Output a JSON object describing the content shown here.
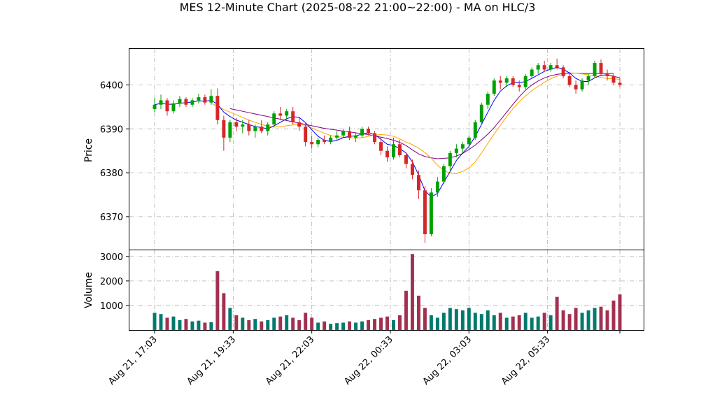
{
  "chart_data": {
    "type": "candlestick",
    "title": "MES 12-Minute Chart (2025-08-22 21:00~22:00) - MA on HLC/3",
    "panels": {
      "price": {
        "ylabel": "Price",
        "yticks": [
          6370,
          6380,
          6390,
          6400
        ],
        "ylim": [
          6362.5,
          6408.2
        ]
      },
      "volume": {
        "ylabel": "Volume",
        "yticks": [
          1000,
          2000,
          3000
        ],
        "ylim": [
          0,
          3250
        ]
      }
    },
    "xticks": [
      "Aug 21, 17:03",
      "Aug 21, 19:33",
      "Aug 21, 22:03",
      "Aug 22, 00:33",
      "Aug 22, 03:03",
      "Aug 22, 05:33"
    ],
    "xtick_bar_index": [
      0,
      12.5,
      25,
      37.5,
      50,
      62.5
    ],
    "bar_count": 75,
    "grid": true,
    "colors": {
      "up": "#00a000",
      "down": "#d62728",
      "ma_fast": "#0000ff",
      "ma_mid": "#ffa500",
      "ma_slow": "#800080",
      "vol_up": "#007a6e",
      "vol_down": "#a23050",
      "grid": "#b0b0b0"
    },
    "ohlc": [
      [
        6394.5,
        6397.0,
        6393.8,
        6395.5
      ],
      [
        6395.5,
        6397.8,
        6394.5,
        6396.5
      ],
      [
        6396.5,
        6397.0,
        6393.0,
        6394.0
      ],
      [
        6394.0,
        6396.5,
        6393.5,
        6395.8
      ],
      [
        6395.8,
        6397.5,
        6395.0,
        6396.8
      ],
      [
        6396.8,
        6397.2,
        6395.0,
        6395.5
      ],
      [
        6395.5,
        6397.0,
        6395.0,
        6396.5
      ],
      [
        6396.5,
        6398.0,
        6395.8,
        6397.2
      ],
      [
        6397.2,
        6397.8,
        6395.5,
        6396.0
      ],
      [
        6396.0,
        6399.0,
        6395.5,
        6397.5
      ],
      [
        6397.5,
        6399.2,
        6391.0,
        6392.0
      ],
      [
        6392.0,
        6393.0,
        6385.0,
        6388.0
      ],
      [
        6388.0,
        6392.0,
        6387.0,
        6391.5
      ],
      [
        6391.5,
        6392.5,
        6389.5,
        6390.5
      ],
      [
        6390.5,
        6392.0,
        6389.0,
        6391.0
      ],
      [
        6391.0,
        6392.0,
        6388.5,
        6389.5
      ],
      [
        6389.5,
        6391.0,
        6388.0,
        6390.5
      ],
      [
        6390.5,
        6392.0,
        6389.0,
        6389.5
      ],
      [
        6389.5,
        6391.5,
        6388.5,
        6391.0
      ],
      [
        6391.0,
        6394.0,
        6390.5,
        6393.5
      ],
      [
        6393.5,
        6395.0,
        6392.0,
        6393.0
      ],
      [
        6393.0,
        6394.5,
        6392.0,
        6394.0
      ],
      [
        6394.0,
        6395.0,
        6391.0,
        6391.5
      ],
      [
        6391.5,
        6392.5,
        6389.5,
        6390.5
      ],
      [
        6390.5,
        6391.5,
        6386.0,
        6387.0
      ],
      [
        6387.0,
        6388.5,
        6385.5,
        6386.5
      ],
      [
        6386.5,
        6388.0,
        6385.8,
        6387.5
      ],
      [
        6387.5,
        6388.5,
        6386.5,
        6387.0
      ],
      [
        6387.0,
        6388.5,
        6386.5,
        6388.0
      ],
      [
        6388.0,
        6389.5,
        6387.5,
        6388.5
      ],
      [
        6388.5,
        6390.0,
        6388.0,
        6389.5
      ],
      [
        6389.5,
        6390.5,
        6387.5,
        6388.0
      ],
      [
        6388.0,
        6389.0,
        6387.0,
        6388.5
      ],
      [
        6388.5,
        6390.5,
        6388.0,
        6390.0
      ],
      [
        6390.0,
        6390.5,
        6388.5,
        6389.0
      ],
      [
        6389.0,
        6389.5,
        6386.5,
        6387.0
      ],
      [
        6387.0,
        6388.0,
        6384.0,
        6385.0
      ],
      [
        6385.0,
        6386.0,
        6382.5,
        6383.5
      ],
      [
        6383.5,
        6388.0,
        6383.0,
        6386.5
      ],
      [
        6386.5,
        6387.5,
        6383.5,
        6384.0
      ],
      [
        6384.0,
        6384.5,
        6381.0,
        6382.0
      ],
      [
        6382.0,
        6383.0,
        6378.5,
        6379.5
      ],
      [
        6379.5,
        6380.5,
        6374.0,
        6376.0
      ],
      [
        6376.0,
        6377.0,
        6364.0,
        6366.0
      ],
      [
        6366.0,
        6376.5,
        6365.5,
        6375.5
      ],
      [
        6375.5,
        6379.0,
        6374.5,
        6378.0
      ],
      [
        6378.0,
        6382.0,
        6377.5,
        6381.5
      ],
      [
        6381.5,
        6385.0,
        6380.5,
        6384.5
      ],
      [
        6384.5,
        6386.5,
        6383.5,
        6385.5
      ],
      [
        6385.5,
        6387.0,
        6384.5,
        6386.5
      ],
      [
        6386.5,
        6388.5,
        6385.5,
        6388.0
      ],
      [
        6388.0,
        6392.0,
        6387.5,
        6391.5
      ],
      [
        6391.5,
        6396.0,
        6391.0,
        6395.5
      ],
      [
        6395.5,
        6398.5,
        6394.5,
        6398.0
      ],
      [
        6398.0,
        6401.5,
        6397.5,
        6401.0
      ],
      [
        6401.0,
        6402.0,
        6399.0,
        6400.5
      ],
      [
        6400.5,
        6402.0,
        6399.5,
        6401.5
      ],
      [
        6401.5,
        6402.0,
        6399.5,
        6400.0
      ],
      [
        6400.0,
        6401.0,
        6398.5,
        6399.5
      ],
      [
        6399.5,
        6402.5,
        6399.0,
        6402.0
      ],
      [
        6402.0,
        6404.0,
        6401.5,
        6403.5
      ],
      [
        6403.5,
        6405.0,
        6402.5,
        6404.5
      ],
      [
        6404.5,
        6405.5,
        6403.0,
        6403.5
      ],
      [
        6403.5,
        6405.0,
        6403.0,
        6404.5
      ],
      [
        6404.5,
        6406.0,
        6403.5,
        6404.0
      ],
      [
        6404.0,
        6404.5,
        6401.5,
        6402.0
      ],
      [
        6402.0,
        6403.0,
        6399.5,
        6400.0
      ],
      [
        6400.0,
        6401.0,
        6398.0,
        6399.0
      ],
      [
        6399.0,
        6401.5,
        6398.5,
        6401.0
      ],
      [
        6401.0,
        6402.5,
        6400.0,
        6402.0
      ],
      [
        6402.0,
        6405.5,
        6401.5,
        6405.0
      ],
      [
        6405.0,
        6405.8,
        6402.0,
        6402.5
      ],
      [
        6402.5,
        6403.5,
        6401.0,
        6402.0
      ],
      [
        6402.0,
        6402.5,
        6400.0,
        6400.5
      ],
      [
        6400.5,
        6401.5,
        6399.5,
        6400.0
      ]
    ],
    "volume": [
      700,
      650,
      500,
      550,
      400,
      450,
      350,
      380,
      300,
      320,
      2400,
      1500,
      900,
      600,
      500,
      400,
      450,
      350,
      400,
      500,
      550,
      600,
      500,
      400,
      700,
      500,
      300,
      350,
      250,
      280,
      300,
      350,
      300,
      350,
      400,
      450,
      500,
      550,
      400,
      600,
      1600,
      3100,
      1400,
      900,
      600,
      500,
      700,
      900,
      850,
      800,
      900,
      700,
      650,
      800,
      600,
      700,
      500,
      550,
      600,
      700,
      500,
      550,
      700,
      600,
      1350,
      800,
      650,
      900,
      700,
      800,
      900,
      950,
      800,
      1200,
      1450
    ],
    "ma_fast": {
      "start": 0,
      "values": [
        6395.5,
        6395.8,
        6395.6,
        6395.6,
        6395.8,
        6396.0,
        6396.1,
        6396.4,
        6396.3,
        6396.5,
        6395.6,
        6393.8,
        6392.8,
        6392.0,
        6391.5,
        6391.0,
        6390.5,
        6390.3,
        6390.0,
        6390.7,
        6391.5,
        6392.3,
        6392.8,
        6392.6,
        6391.4,
        6389.8,
        6388.3,
        6387.4,
        6387.1,
        6387.4,
        6388.0,
        6388.3,
        6388.4,
        6388.8,
        6389.1,
        6388.7,
        6387.6,
        6386.5,
        6386.2,
        6385.5,
        6384.5,
        6382.5,
        6379.5,
        6375.9,
        6374.5,
        6375.3,
        6377.8,
        6380.3,
        6382.8,
        6384.5,
        6386.0,
        6388.3,
        6391.0,
        6393.8,
        6396.5,
        6398.6,
        6399.8,
        6400.5,
        6400.5,
        6400.8,
        6401.5,
        6402.3,
        6403.1,
        6403.6,
        6404.0,
        6403.6,
        6402.7,
        6401.5,
        6400.8,
        6400.8,
        6401.6,
        6402.2,
        6402.3,
        6402.0,
        6401.6
      ]
    },
    "ma_mid": {
      "start": 9,
      "values": [
        6395.8,
        6395.2,
        6394.4,
        6393.8,
        6393.2,
        6392.6,
        6392.0,
        6391.5,
        6391.0,
        6390.6,
        6390.4,
        6390.5,
        6390.7,
        6390.9,
        6391.0,
        6390.8,
        6390.2,
        6389.6,
        6389.0,
        6388.5,
        6388.2,
        6388.1,
        6388.0,
        6387.9,
        6388.0,
        6388.3,
        6388.6,
        6388.7,
        6388.6,
        6388.3,
        6387.7,
        6387.0,
        6386.4,
        6385.6,
        6384.6,
        6383.3,
        6381.7,
        6380.5,
        6379.9,
        6379.8,
        6380.3,
        6381.1,
        6382.5,
        6384.5,
        6386.7,
        6388.8,
        6390.8,
        6392.8,
        6394.6,
        6396.2,
        6397.5,
        6398.7,
        6399.7,
        6400.6,
        6401.4,
        6402.0,
        6402.4,
        6402.6,
        6402.7,
        6402.5,
        6402.3,
        6402.0,
        6401.7,
        6401.5,
        6401.4,
        6401.3
      ]
    },
    "ma_slow": {
      "start": 12,
      "values": [
        6394.6,
        6394.3,
        6394.0,
        6393.7,
        6393.4,
        6393.1,
        6392.8,
        6392.5,
        6392.2,
        6391.9,
        6391.6,
        6391.3,
        6391.0,
        6390.7,
        6390.4,
        6390.1,
        6389.9,
        6389.7,
        6389.5,
        6389.3,
        6389.1,
        6388.9,
        6388.7,
        6388.4,
        6388.1,
        6387.8,
        6387.4,
        6386.9,
        6386.2,
        6385.2,
        6384.3,
        6383.7,
        6383.4,
        6383.2,
        6383.3,
        6383.4,
        6383.8,
        6384.4,
        6385.3,
        6386.3,
        6387.5,
        6388.8,
        6390.3,
        6392.0,
        6393.8,
        6395.6,
        6397.3,
        6398.8,
        6400.0,
        6400.9,
        6401.6,
        6402.1,
        6402.4,
        6402.6,
        6402.7,
        6402.7,
        6402.6,
        6402.6,
        6402.6,
        6402.6,
        6402.6,
        6402.6
      ]
    }
  }
}
